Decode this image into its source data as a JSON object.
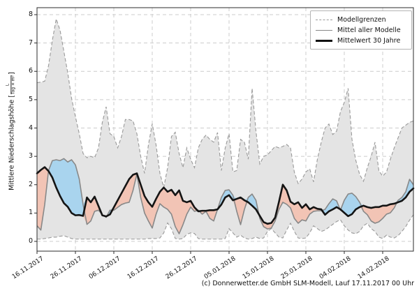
{
  "figure": {
    "caption": "(c) Donnerwetter.de GmbH SLM-Modell, Lauf 17.11.2017 00 Uhr"
  },
  "legend": {
    "position": "top-right",
    "items": [
      {
        "label": "Modellgrenzen",
        "style": "dashed-gray"
      },
      {
        "label": "Mittel aller Modelle",
        "style": "solid-gray"
      },
      {
        "label": "Mittelwert 30 Jahre",
        "style": "solid-black-thick"
      }
    ]
  },
  "axes": {
    "y_label_prefix": "Mittlere Niederschlagshöhe [",
    "y_label_fraction_numerator": "L",
    "y_label_fraction_denominator": "Tag × m²",
    "y_label_suffix": "]",
    "y_tick_labels": [
      "0",
      "1",
      "2",
      "3",
      "4",
      "5",
      "6",
      "7",
      "8"
    ],
    "x_tick_labels": [
      "16.11.2017",
      "26.11.2017",
      "06.12.2017",
      "16.12.2017",
      "26.12.2017",
      "05.01.2018",
      "15.01.2018",
      "25.01.2018",
      "04.02.2018",
      "14.02.2018"
    ],
    "x_tick_days": [
      0,
      10,
      20,
      30,
      40,
      50,
      60,
      70,
      80,
      90
    ]
  },
  "colors": {
    "band_fill": "#e4e4e4",
    "band_border": "#999999",
    "above_normal_fill": "#a9d4ee",
    "below_normal_fill": "#f2c4b5",
    "model_mean_line": "#888888",
    "mean_30y_line": "#141414",
    "grid": "#cccccc",
    "spine": "#2b2b2b"
  },
  "chart_data": {
    "type": "line",
    "title": "",
    "xlabel": "",
    "ylabel": "Mittlere Niederschlagshöhe [L/(Tag × m²)]",
    "ylim": [
      0,
      8
    ],
    "grid": true,
    "legend_position": "top-right",
    "x_unit": "Tag (täglich, Start 16.11.2017)",
    "x_start_date": "16.11.2017",
    "series": [
      {
        "name": "model_max",
        "legend": "Modellgrenzen (oben)",
        "style": "dashed",
        "values": [
          5.6,
          5.62,
          5.65,
          6.2,
          7.1,
          7.85,
          7.45,
          6.7,
          5.95,
          5.05,
          4.4,
          3.8,
          3.1,
          2.95,
          3.0,
          2.95,
          3.3,
          4.2,
          4.75,
          3.8,
          3.7,
          3.3,
          3.7,
          4.3,
          4.3,
          4.25,
          3.8,
          3.0,
          2.4,
          3.4,
          4.15,
          3.4,
          2.4,
          1.9,
          2.6,
          3.7,
          3.85,
          3.1,
          2.6,
          3.3,
          2.9,
          2.6,
          3.3,
          3.6,
          3.75,
          3.6,
          3.5,
          3.84,
          2.5,
          3.3,
          3.8,
          2.45,
          2.5,
          3.6,
          3.5,
          2.9,
          5.4,
          3.9,
          2.73,
          3.0,
          3.05,
          3.2,
          3.35,
          3.3,
          3.35,
          3.42,
          3.3,
          2.44,
          2.04,
          2.2,
          2.45,
          2.56,
          2.1,
          2.9,
          3.5,
          4.0,
          4.14,
          3.77,
          3.89,
          4.58,
          4.9,
          5.4,
          3.6,
          2.86,
          2.36,
          2.12,
          2.6,
          3.0,
          3.5,
          2.5,
          2.3,
          2.45,
          2.9,
          3.3,
          3.65,
          4.0,
          4.1,
          4.2,
          4.25
        ]
      },
      {
        "name": "model_min",
        "legend": "Modellgrenzen (unten)",
        "style": "dashed",
        "values": [
          0.08,
          0.08,
          0.1,
          0.12,
          0.15,
          0.15,
          0.18,
          0.2,
          0.15,
          0.1,
          0.08,
          0.08,
          0.08,
          0.08,
          0.08,
          0.08,
          0.08,
          0.08,
          0.08,
          0.08,
          0.08,
          0.08,
          0.08,
          0.08,
          0.08,
          0.08,
          0.08,
          0.08,
          0.08,
          0.1,
          0.1,
          0.1,
          0.12,
          0.3,
          0.65,
          0.45,
          0.1,
          0.08,
          0.1,
          0.25,
          0.3,
          0.28,
          0.1,
          0.08,
          0.08,
          0.08,
          0.08,
          0.08,
          0.08,
          0.1,
          0.45,
          0.3,
          0.15,
          0.22,
          0.12,
          0.08,
          0.1,
          0.15,
          0.1,
          0.12,
          0.35,
          0.45,
          0.3,
          0.15,
          0.12,
          0.4,
          0.64,
          0.35,
          0.12,
          0.1,
          0.12,
          0.3,
          0.55,
          0.45,
          0.35,
          0.4,
          0.5,
          0.6,
          0.7,
          0.76,
          0.55,
          0.4,
          0.3,
          0.27,
          0.35,
          0.55,
          0.64,
          0.45,
          0.35,
          0.15,
          0.1,
          0.22,
          0.15,
          0.12,
          0.2,
          0.35,
          0.52,
          0.75,
          0.94
        ]
      },
      {
        "name": "model_mean",
        "legend": "Mittel aller Modelle",
        "style": "solid-gray",
        "values": [
          0.55,
          0.4,
          1.3,
          2.5,
          2.85,
          2.88,
          2.85,
          2.92,
          2.8,
          2.88,
          2.7,
          2.2,
          1.3,
          0.6,
          0.72,
          1.06,
          1.1,
          0.95,
          0.85,
          1.1,
          1.1,
          1.2,
          1.3,
          1.35,
          1.38,
          1.8,
          2.38,
          1.55,
          1.0,
          0.72,
          0.47,
          0.96,
          1.33,
          1.21,
          1.13,
          0.96,
          0.52,
          0.27,
          0.59,
          0.96,
          1.21,
          1.06,
          1.1,
          0.96,
          1.06,
          0.81,
          0.72,
          1.13,
          1.55,
          1.8,
          1.82,
          1.63,
          1.06,
          0.59,
          1.13,
          1.55,
          1.67,
          1.45,
          0.81,
          0.52,
          0.44,
          0.47,
          0.72,
          1.13,
          1.38,
          1.31,
          1.18,
          0.81,
          0.64,
          0.76,
          0.72,
          0.96,
          1.06,
          1.08,
          1.08,
          1.13,
          1.33,
          1.5,
          1.43,
          1.1,
          1.45,
          1.67,
          1.7,
          1.58,
          1.38,
          1.06,
          0.94,
          0.72,
          0.64,
          0.69,
          0.81,
          0.96,
          1.01,
          1.18,
          1.45,
          1.55,
          1.75,
          2.19,
          2.0
        ]
      },
      {
        "name": "mean_30y",
        "legend": "Mittelwert 30 Jahre",
        "style": "solid-black-thick",
        "values": [
          2.4,
          2.52,
          2.62,
          2.48,
          2.25,
          1.9,
          1.6,
          1.35,
          1.22,
          1.0,
          0.92,
          0.93,
          0.9,
          1.55,
          1.38,
          1.58,
          1.25,
          0.92,
          0.88,
          0.95,
          1.2,
          1.45,
          1.7,
          1.95,
          2.2,
          2.35,
          2.4,
          2.0,
          1.6,
          1.38,
          1.22,
          1.5,
          1.75,
          1.9,
          1.75,
          1.82,
          1.63,
          1.8,
          1.43,
          1.38,
          1.43,
          1.2,
          1.06,
          1.08,
          1.08,
          1.1,
          1.1,
          1.13,
          1.3,
          1.55,
          1.63,
          1.45,
          1.5,
          1.55,
          1.45,
          1.38,
          1.26,
          1.13,
          0.9,
          0.68,
          0.62,
          0.65,
          0.84,
          1.4,
          2.0,
          1.8,
          1.4,
          1.31,
          1.38,
          1.18,
          1.31,
          1.13,
          1.21,
          1.15,
          1.13,
          0.94,
          1.06,
          1.13,
          1.21,
          1.13,
          1.01,
          0.89,
          0.96,
          1.13,
          1.21,
          1.26,
          1.21,
          1.18,
          1.21,
          1.21,
          1.26,
          1.26,
          1.31,
          1.33,
          1.38,
          1.43,
          1.55,
          1.75,
          1.87
        ]
      }
    ],
    "fills": [
      {
        "name": "model_range_band",
        "between": [
          "model_min",
          "model_max"
        ],
        "color": "#e4e4e4"
      },
      {
        "name": "above_normal",
        "between": [
          "mean_30y",
          "model_mean"
        ],
        "where": "model_mean > mean_30y",
        "color": "#a9d4ee"
      },
      {
        "name": "below_normal",
        "between": [
          "model_mean",
          "mean_30y"
        ],
        "where": "model_mean < mean_30y",
        "color": "#f2c4b5"
      }
    ]
  }
}
